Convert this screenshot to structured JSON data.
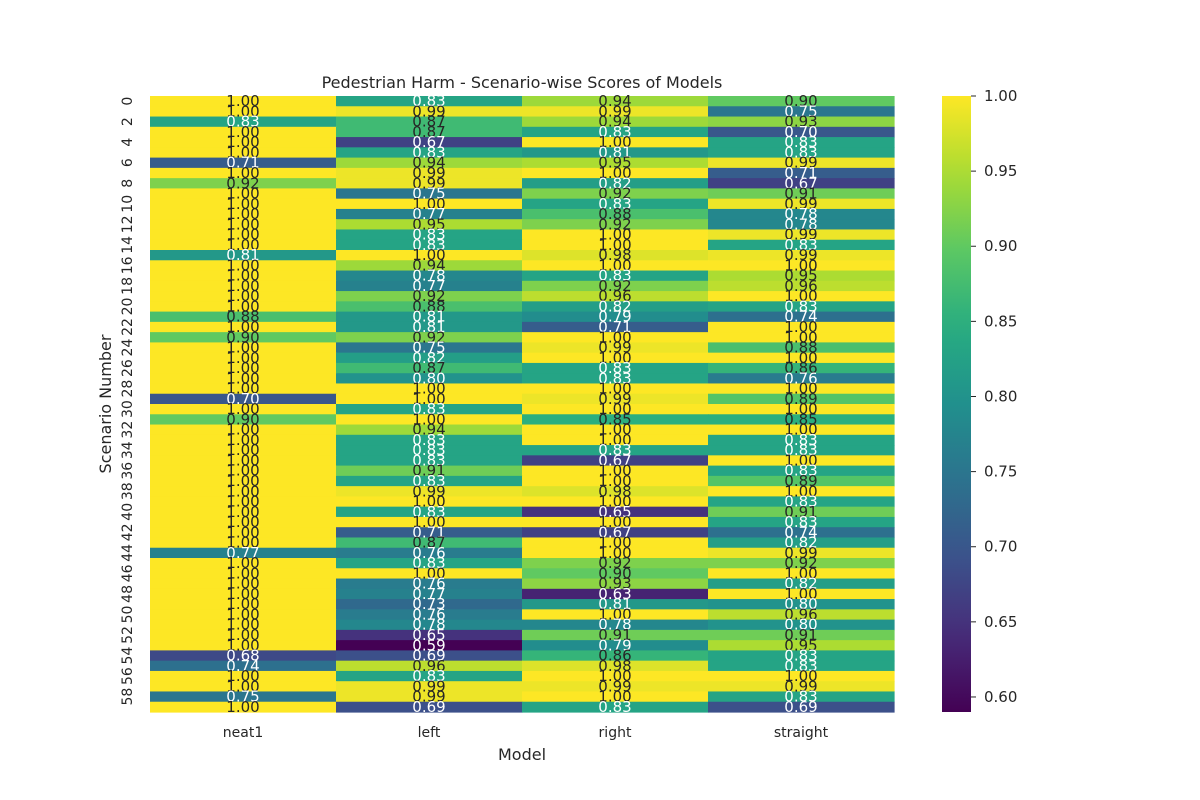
{
  "chart_data": {
    "type": "heatmap",
    "title": "Pedestrian Harm - Scenario-wise Scores of Models",
    "xlabel": "Model",
    "ylabel": "Scenario Number",
    "columns": [
      "neat1",
      "left",
      "right",
      "straight"
    ],
    "rows": [
      0,
      1,
      2,
      3,
      4,
      5,
      6,
      7,
      8,
      9,
      10,
      11,
      12,
      13,
      14,
      15,
      16,
      17,
      18,
      19,
      20,
      21,
      22,
      23,
      24,
      25,
      26,
      27,
      28,
      29,
      30,
      31,
      32,
      33,
      34,
      35,
      36,
      37,
      38,
      39,
      40,
      41,
      42,
      43,
      44,
      45,
      46,
      47,
      48,
      49,
      50,
      51,
      52,
      53,
      54,
      55,
      56,
      57,
      58,
      59
    ],
    "y_tick_labels": [
      "0",
      "2",
      "4",
      "6",
      "8",
      "10",
      "12",
      "14",
      "16",
      "18",
      "20",
      "22",
      "24",
      "26",
      "28",
      "30",
      "32",
      "34",
      "36",
      "38",
      "40",
      "42",
      "44",
      "46",
      "48",
      "50",
      "52",
      "54",
      "56",
      "58"
    ],
    "values": [
      [
        1.0,
        0.83,
        0.94,
        0.9
      ],
      [
        1.0,
        0.99,
        0.99,
        0.75
      ],
      [
        0.83,
        0.87,
        0.94,
        0.93
      ],
      [
        1.0,
        0.87,
        0.83,
        0.7
      ],
      [
        1.0,
        0.67,
        1.0,
        0.83
      ],
      [
        1.0,
        0.83,
        0.81,
        0.83
      ],
      [
        0.71,
        0.94,
        0.95,
        0.99
      ],
      [
        1.0,
        0.99,
        1.0,
        0.71
      ],
      [
        0.92,
        0.99,
        0.82,
        0.67
      ],
      [
        1.0,
        0.75,
        0.92,
        0.91
      ],
      [
        1.0,
        1.0,
        0.83,
        0.99
      ],
      [
        1.0,
        0.77,
        0.88,
        0.78
      ],
      [
        1.0,
        0.95,
        0.92,
        0.78
      ],
      [
        1.0,
        0.83,
        1.0,
        0.99
      ],
      [
        1.0,
        0.83,
        1.0,
        0.83
      ],
      [
        0.81,
        1.0,
        0.98,
        0.99
      ],
      [
        1.0,
        0.94,
        1.0,
        1.0
      ],
      [
        1.0,
        0.78,
        0.83,
        0.95
      ],
      [
        1.0,
        0.77,
        0.92,
        0.96
      ],
      [
        1.0,
        0.92,
        0.96,
        1.0
      ],
      [
        1.0,
        0.88,
        0.82,
        0.83
      ],
      [
        0.88,
        0.81,
        0.79,
        0.74
      ],
      [
        1.0,
        0.81,
        0.71,
        1.0
      ],
      [
        0.9,
        0.92,
        1.0,
        1.0
      ],
      [
        1.0,
        0.75,
        0.99,
        0.88
      ],
      [
        1.0,
        0.82,
        1.0,
        1.0
      ],
      [
        1.0,
        0.87,
        0.83,
        0.86
      ],
      [
        1.0,
        0.8,
        0.83,
        0.76
      ],
      [
        1.0,
        1.0,
        1.0,
        1.0
      ],
      [
        0.7,
        1.0,
        0.99,
        0.89
      ],
      [
        1.0,
        0.83,
        1.0,
        1.0
      ],
      [
        0.9,
        1.0,
        0.85,
        0.85
      ],
      [
        1.0,
        0.94,
        1.0,
        1.0
      ],
      [
        1.0,
        0.83,
        1.0,
        0.83
      ],
      [
        1.0,
        0.83,
        0.83,
        0.83
      ],
      [
        1.0,
        0.83,
        0.67,
        1.0
      ],
      [
        1.0,
        0.91,
        1.0,
        0.83
      ],
      [
        1.0,
        0.83,
        1.0,
        0.89
      ],
      [
        1.0,
        0.99,
        0.98,
        1.0
      ],
      [
        1.0,
        1.0,
        1.0,
        0.83
      ],
      [
        1.0,
        0.83,
        0.65,
        0.91
      ],
      [
        1.0,
        1.0,
        1.0,
        0.83
      ],
      [
        1.0,
        0.71,
        0.67,
        0.74
      ],
      [
        1.0,
        0.87,
        1.0,
        0.82
      ],
      [
        0.77,
        0.76,
        1.0,
        0.99
      ],
      [
        1.0,
        0.83,
        0.92,
        0.92
      ],
      [
        1.0,
        1.0,
        0.9,
        1.0
      ],
      [
        1.0,
        0.76,
        0.93,
        0.82
      ],
      [
        1.0,
        0.77,
        0.63,
        1.0
      ],
      [
        1.0,
        0.73,
        0.81,
        0.8
      ],
      [
        1.0,
        0.76,
        1.0,
        0.96
      ],
      [
        1.0,
        0.78,
        0.78,
        0.8
      ],
      [
        1.0,
        0.65,
        0.91,
        0.91
      ],
      [
        1.0,
        0.59,
        0.79,
        0.95
      ],
      [
        0.68,
        0.69,
        0.86,
        0.83
      ],
      [
        0.74,
        0.96,
        0.98,
        0.83
      ],
      [
        1.0,
        0.83,
        1.0,
        1.0
      ],
      [
        1.0,
        0.99,
        0.99,
        0.99
      ],
      [
        0.75,
        0.99,
        1.0,
        0.83
      ],
      [
        1.0,
        0.69,
        0.83,
        0.69
      ]
    ],
    "vmin": 0.59,
    "vmax": 1.0,
    "colormap": "viridis",
    "colorbar_ticks": [
      "0.60",
      "0.65",
      "0.70",
      "0.75",
      "0.80",
      "0.85",
      "0.90",
      "0.95",
      "1.00"
    ],
    "annotations": true
  },
  "colors": {
    "annotation_dark": "#262626",
    "annotation_light": "#ffffff",
    "axis_text": "#262626",
    "background": "#ffffff"
  }
}
